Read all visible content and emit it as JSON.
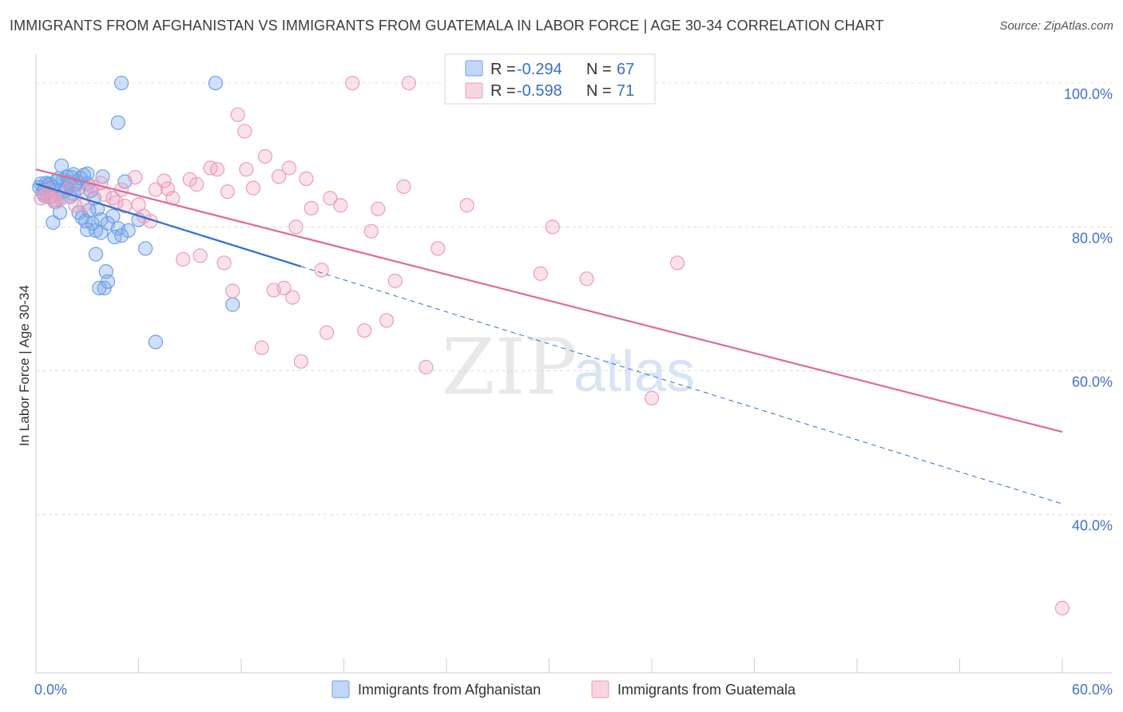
{
  "title": "IMMIGRANTS FROM AFGHANISTAN VS IMMIGRANTS FROM GUATEMALA IN LABOR FORCE | AGE 30-34 CORRELATION CHART",
  "source": "Source: ZipAtlas.com",
  "watermark": {
    "zip": "ZIP",
    "atlas": "atlas"
  },
  "chart_data": {
    "type": "scatter",
    "title": "IMMIGRANTS FROM AFGHANISTAN VS IMMIGRANTS FROM GUATEMALA IN LABOR FORCE | AGE 30-34 CORRELATION CHART",
    "xlabel": "",
    "ylabel": "In Labor Force | Age 30-34",
    "xlim": [
      0,
      60
    ],
    "ylim": [
      18,
      104
    ],
    "x_tick_labels": [
      "0.0%",
      "60.0%"
    ],
    "y_ticks": [
      40,
      60,
      80,
      100
    ],
    "y_tick_labels": [
      "40.0%",
      "60.0%",
      "80.0%",
      "100.0%"
    ],
    "grid": true,
    "legend_position": "top-center",
    "stats": [
      {
        "r_label": "R = ",
        "r_value": "-0.294",
        "n_label": "N = ",
        "n_value": "67"
      },
      {
        "r_label": "R = ",
        "r_value": "-0.598",
        "n_label": "N = ",
        "n_value": "71"
      }
    ],
    "series": [
      {
        "name": "Immigrants from Afghanistan",
        "color": "#6fa0e6",
        "fill": "rgba(120,165,235,0.35)",
        "trend_color": "#2f6fcc",
        "trend_solid": [
          [
            0.0,
            86.0
          ],
          [
            15.5,
            74.5
          ]
        ],
        "trend_dashed": [
          [
            15.5,
            74.5
          ],
          [
            60.0,
            41.5
          ]
        ],
        "points": [
          [
            0.2,
            85.5
          ],
          [
            0.3,
            86.0
          ],
          [
            0.4,
            84.8
          ],
          [
            0.5,
            85.2
          ],
          [
            0.5,
            84.5
          ],
          [
            0.6,
            86.1
          ],
          [
            0.7,
            85.8
          ],
          [
            0.8,
            86.0
          ],
          [
            0.9,
            84.2
          ],
          [
            1.0,
            85.6
          ],
          [
            1.1,
            83.5
          ],
          [
            1.2,
            86.4
          ],
          [
            1.3,
            86.7
          ],
          [
            1.4,
            85.1
          ],
          [
            1.5,
            84.0
          ],
          [
            1.6,
            86.5
          ],
          [
            1.7,
            85.0
          ],
          [
            1.8,
            87.0
          ],
          [
            1.9,
            86.2
          ],
          [
            2.0,
            85.7
          ],
          [
            2.1,
            86.9
          ],
          [
            2.2,
            84.6
          ],
          [
            2.3,
            85.9
          ],
          [
            2.4,
            86.3
          ],
          [
            2.5,
            85.4
          ],
          [
            2.6,
            86.8
          ],
          [
            1.5,
            88.5
          ],
          [
            2.2,
            87.3
          ],
          [
            2.8,
            87.2
          ],
          [
            3.0,
            86.0
          ],
          [
            3.2,
            85.0
          ],
          [
            3.4,
            84.0
          ],
          [
            3.6,
            82.5
          ],
          [
            3.8,
            81.0
          ],
          [
            2.5,
            82.0
          ],
          [
            2.7,
            81.3
          ],
          [
            2.9,
            80.8
          ],
          [
            3.1,
            82.3
          ],
          [
            3.3,
            80.5
          ],
          [
            1.0,
            80.6
          ],
          [
            1.4,
            82.0
          ],
          [
            3.5,
            79.5
          ],
          [
            3.8,
            79.2
          ],
          [
            4.2,
            80.5
          ],
          [
            4.5,
            81.5
          ],
          [
            4.8,
            79.8
          ],
          [
            5.0,
            78.8
          ],
          [
            5.4,
            79.5
          ],
          [
            6.0,
            81.0
          ],
          [
            6.4,
            77.0
          ],
          [
            3.5,
            76.2
          ],
          [
            3.7,
            71.5
          ],
          [
            4.0,
            71.5
          ],
          [
            4.2,
            72.4
          ],
          [
            4.1,
            73.8
          ],
          [
            4.8,
            94.5
          ],
          [
            5.0,
            100.0
          ],
          [
            10.5,
            100.0
          ],
          [
            5.2,
            86.3
          ],
          [
            3.9,
            87.0
          ],
          [
            11.5,
            69.2
          ],
          [
            7.0,
            64.0
          ],
          [
            4.6,
            78.6
          ],
          [
            3.0,
            79.6
          ],
          [
            1.8,
            85.3
          ],
          [
            2.0,
            84.2
          ],
          [
            3.0,
            87.4
          ]
        ]
      },
      {
        "name": "Immigrants from Guatemala",
        "color": "#ec9cb9",
        "fill": "rgba(240,160,190,0.30)",
        "trend_color": "#e06a95",
        "trend_solid": [
          [
            0.0,
            88.0
          ],
          [
            60.0,
            51.5
          ]
        ],
        "trend_dashed": [],
        "points": [
          [
            0.3,
            84.0
          ],
          [
            0.5,
            84.3
          ],
          [
            0.7,
            85.0
          ],
          [
            0.8,
            84.1
          ],
          [
            1.0,
            83.8
          ],
          [
            1.2,
            83.5
          ],
          [
            1.5,
            84.0
          ],
          [
            2.0,
            85.5
          ],
          [
            2.3,
            83.0
          ],
          [
            2.8,
            83.0
          ],
          [
            3.0,
            84.8
          ],
          [
            3.3,
            85.6
          ],
          [
            3.8,
            86.1
          ],
          [
            4.0,
            84.5
          ],
          [
            4.5,
            84.0
          ],
          [
            4.7,
            83.4
          ],
          [
            5.0,
            85.2
          ],
          [
            5.2,
            82.9
          ],
          [
            5.8,
            86.9
          ],
          [
            6.0,
            83.1
          ],
          [
            6.3,
            81.5
          ],
          [
            6.7,
            80.8
          ],
          [
            7.0,
            85.2
          ],
          [
            7.5,
            86.4
          ],
          [
            7.7,
            85.3
          ],
          [
            8.0,
            84.0
          ],
          [
            8.6,
            75.5
          ],
          [
            9.0,
            86.6
          ],
          [
            9.4,
            85.9
          ],
          [
            9.6,
            76.0
          ],
          [
            10.2,
            88.2
          ],
          [
            10.6,
            88.0
          ],
          [
            11.0,
            75.0
          ],
          [
            11.2,
            84.9
          ],
          [
            11.5,
            71.1
          ],
          [
            11.8,
            95.6
          ],
          [
            12.2,
            93.3
          ],
          [
            12.3,
            88.0
          ],
          [
            12.7,
            85.4
          ],
          [
            13.2,
            63.2
          ],
          [
            13.4,
            89.8
          ],
          [
            13.9,
            71.2
          ],
          [
            14.2,
            87.0
          ],
          [
            14.5,
            71.5
          ],
          [
            14.8,
            88.2
          ],
          [
            15.0,
            70.2
          ],
          [
            15.2,
            80.0
          ],
          [
            15.5,
            61.3
          ],
          [
            15.8,
            86.7
          ],
          [
            16.1,
            82.6
          ],
          [
            16.7,
            74.0
          ],
          [
            17.0,
            65.3
          ],
          [
            17.2,
            84.0
          ],
          [
            17.8,
            83.0
          ],
          [
            18.5,
            100.0
          ],
          [
            19.2,
            65.6
          ],
          [
            19.6,
            79.4
          ],
          [
            20.0,
            82.5
          ],
          [
            20.5,
            67.0
          ],
          [
            21.0,
            72.5
          ],
          [
            21.5,
            85.6
          ],
          [
            21.8,
            100.0
          ],
          [
            22.8,
            60.5
          ],
          [
            23.5,
            77.0
          ],
          [
            25.2,
            83.0
          ],
          [
            29.5,
            73.5
          ],
          [
            30.2,
            80.0
          ],
          [
            32.2,
            72.8
          ],
          [
            36.0,
            56.2
          ],
          [
            37.5,
            75.0
          ],
          [
            60.0,
            27.0
          ]
        ]
      }
    ]
  }
}
